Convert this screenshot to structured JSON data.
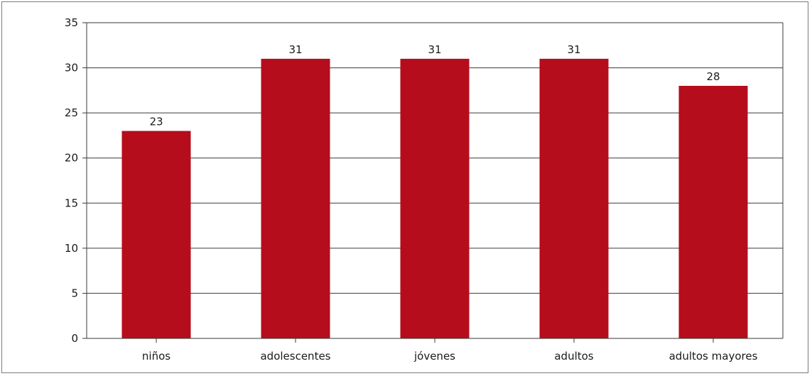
{
  "chart_data": {
    "type": "bar",
    "categories": [
      "niños",
      "adolescentes",
      "jóvenes",
      "adultos",
      "adultos mayores"
    ],
    "values": [
      23,
      31,
      31,
      31,
      28
    ],
    "data_labels": [
      "23",
      "31",
      "31",
      "31",
      "28"
    ],
    "ylim": [
      0,
      35
    ],
    "yticks": [
      0,
      5,
      10,
      15,
      20,
      25,
      30,
      35
    ],
    "grid": true,
    "bar_color": "#b50d1c",
    "title": "",
    "xlabel": "",
    "ylabel": ""
  }
}
